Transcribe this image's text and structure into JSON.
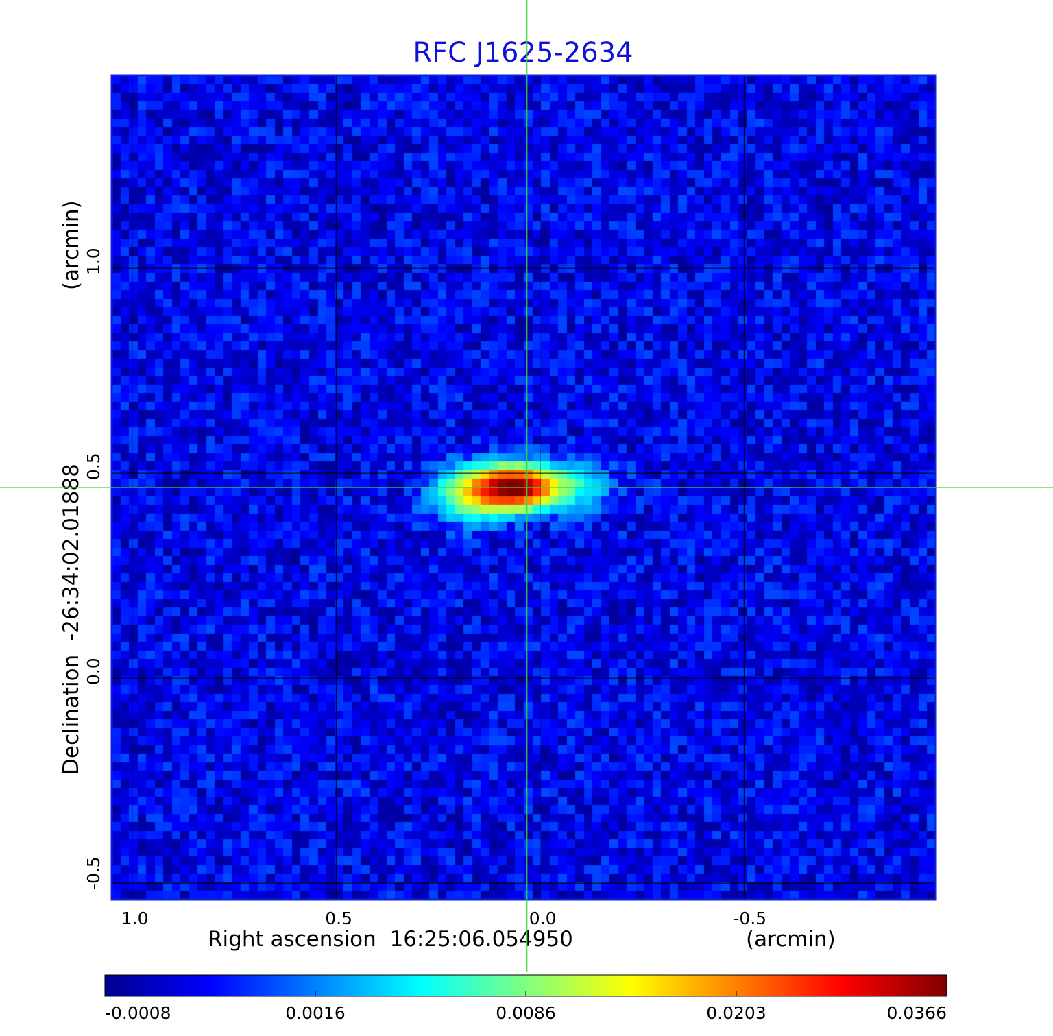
{
  "chart_data": {
    "type": "heatmap",
    "title": "RFC J1625-2634",
    "xlabel": "Right ascension  16:25:06.054950",
    "xlabel_unit": "(arcmin)",
    "ylabel": "Declination  -26:34:02.01888",
    "ylabel_unit": "(arcmin)",
    "xlim": [
      1.05,
      -0.97
    ],
    "ylim": [
      -0.54,
      1.47
    ],
    "x_ticks": [
      {
        "value": 1.0,
        "label": "1.0"
      },
      {
        "value": 0.5,
        "label": "0.5"
      },
      {
        "value": 0.0,
        "label": "0.0"
      },
      {
        "value": -0.5,
        "label": "-0.5"
      }
    ],
    "y_ticks": [
      {
        "value": -0.5,
        "label": "-0.5"
      },
      {
        "value": 0.0,
        "label": "0.0"
      },
      {
        "value": 0.5,
        "label": "0.5"
      },
      {
        "value": 1.0,
        "label": "1.0"
      }
    ],
    "grid": true,
    "crosshair": {
      "x": 0.032,
      "y": 0.465,
      "color": "#3ad83a"
    },
    "colorbar": {
      "placement": "bottom",
      "ticks": [
        {
          "value": -0.0008,
          "label": "-0.0008"
        },
        {
          "value": 0.0016,
          "label": "0.0016"
        },
        {
          "value": 0.0086,
          "label": "0.0086"
        },
        {
          "value": 0.0203,
          "label": "0.0203"
        },
        {
          "value": 0.0366,
          "label": "0.0366"
        }
      ],
      "colormap": [
        "#00008f",
        "#0000ff",
        "#0080ff",
        "#00ffff",
        "#80ff80",
        "#ffff00",
        "#ff8000",
        "#ff0000",
        "#800000"
      ]
    },
    "background_value": 0.0002,
    "sources": [
      {
        "x": 0.06,
        "y": 0.465,
        "sx": 0.06,
        "sy": 0.03,
        "peak": 0.0366
      },
      {
        "x": 0.16,
        "y": 0.45,
        "sx": 0.06,
        "sy": 0.04,
        "peak": 0.012
      },
      {
        "x": -0.08,
        "y": 0.47,
        "sx": 0.06,
        "sy": 0.04,
        "peak": 0.005
      }
    ],
    "noise_amplitude": 0.0009
  },
  "colors": {
    "title": "#1010d8",
    "frame": "#0a22d8",
    "grid": "#000000",
    "crosshair": "#3ad83a"
  }
}
